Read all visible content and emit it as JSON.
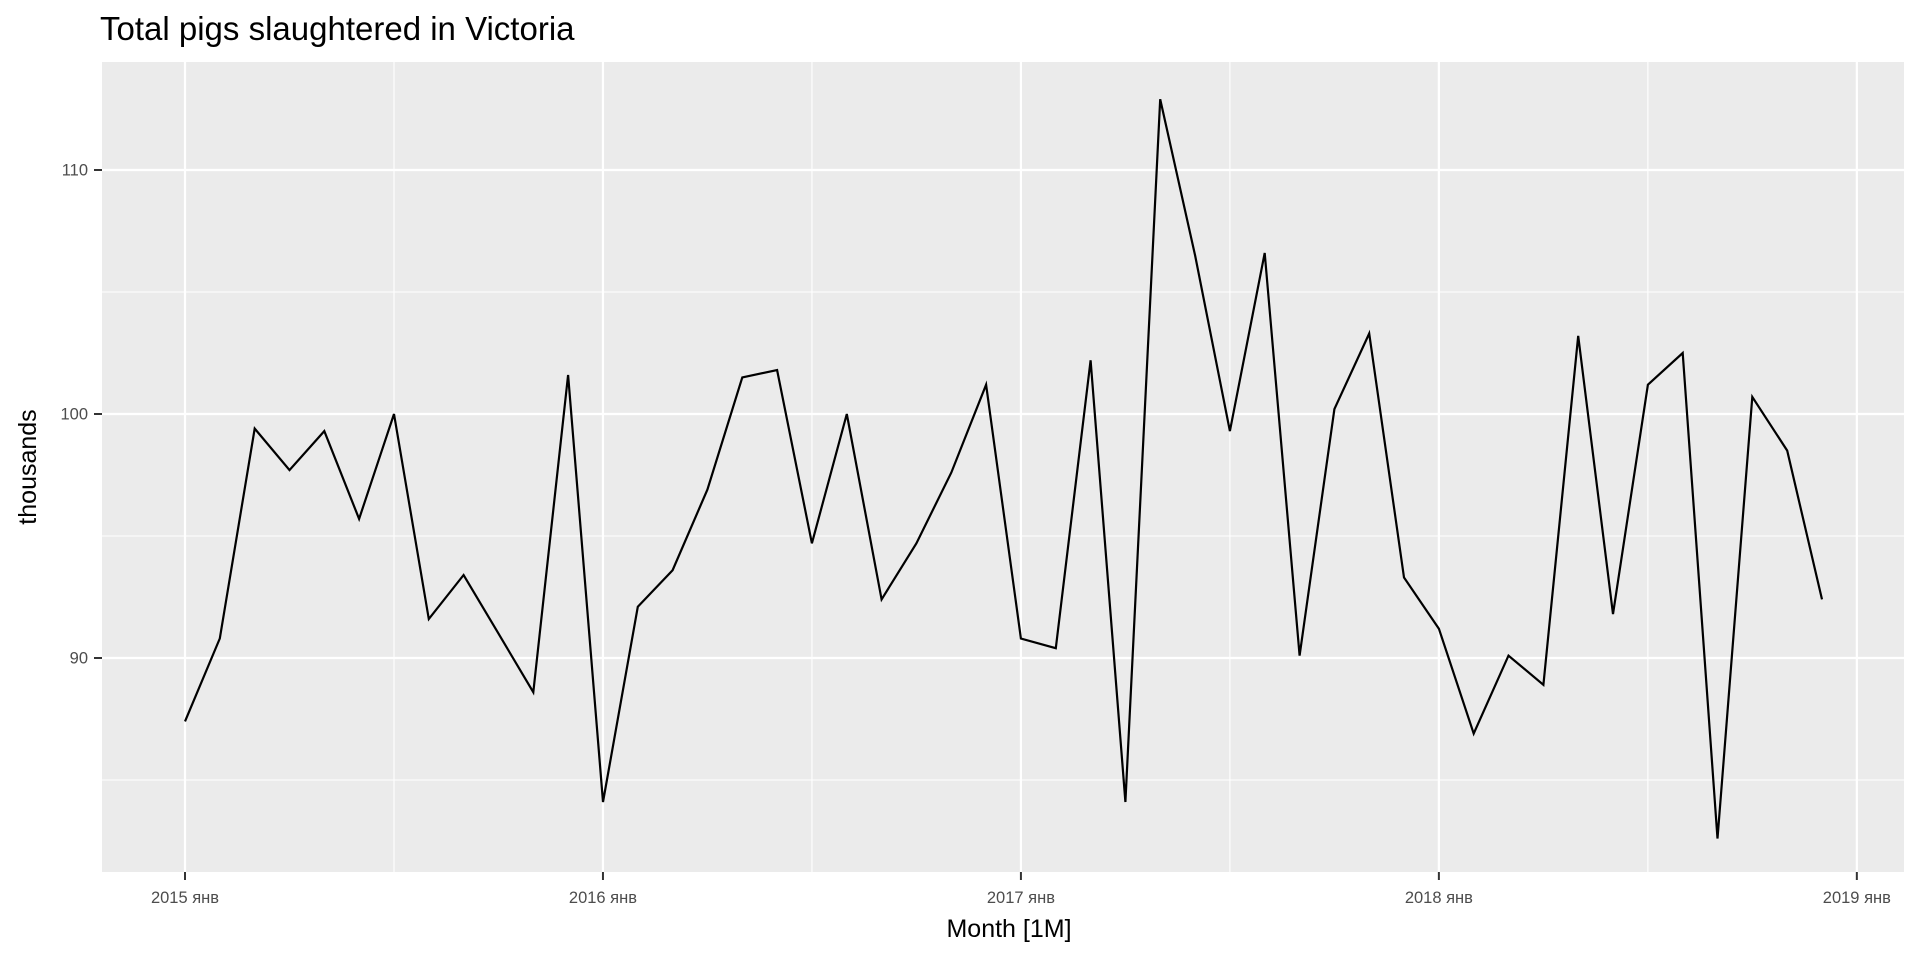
{
  "title": "Total pigs slaughtered in Victoria",
  "chart_data": {
    "type": "line",
    "title": "Total pigs slaughtered in Victoria",
    "xlabel": "Month [1M]",
    "ylabel": "thousands",
    "legend": "none",
    "grid": true,
    "start_month": "2015-01",
    "end_month": "2018-12",
    "frequency": "monthly",
    "x_tick_labels": [
      "2015 янв",
      "2016 янв",
      "2017 янв",
      "2018 янв",
      "2019 янв"
    ],
    "x_tick_month_index": [
      0,
      12,
      24,
      36,
      48
    ],
    "x_minor_month_index": [
      6,
      18,
      30,
      42
    ],
    "y_tick_labels": [
      "90",
      "100",
      "110"
    ],
    "y_tick_values": [
      90,
      100,
      110
    ],
    "y_minor_values": [
      85,
      95,
      105
    ],
    "ylim": [
      81.2,
      114.4
    ],
    "xlim_months": [
      -2.38,
      49.35
    ],
    "series": [
      {
        "name": "Total pigs slaughtered in Victoria (thousands)",
        "values": [
          87.4,
          90.8,
          99.4,
          97.7,
          99.3,
          95.7,
          100.0,
          91.6,
          93.4,
          91.0,
          88.6,
          101.6,
          84.1,
          92.1,
          93.6,
          96.9,
          101.5,
          101.8,
          94.7,
          100.0,
          92.4,
          94.7,
          97.6,
          101.2,
          90.8,
          90.4,
          102.2,
          84.1,
          112.9,
          106.5,
          99.3,
          106.6,
          90.1,
          100.2,
          103.3,
          93.3,
          91.2,
          86.9,
          90.1,
          88.9,
          103.2,
          91.8,
          101.2,
          102.5,
          82.6,
          100.7,
          98.5,
          92.4
        ]
      }
    ],
    "colors": {
      "panel_bg": "#EBEBEB",
      "grid": "#FFFFFF",
      "line": "#000000",
      "tick_text": "#4D4D4D",
      "tick_mark": "#333333",
      "axis_title": "#000000",
      "title": "#000000",
      "outer_bg": "#FFFFFF"
    }
  }
}
